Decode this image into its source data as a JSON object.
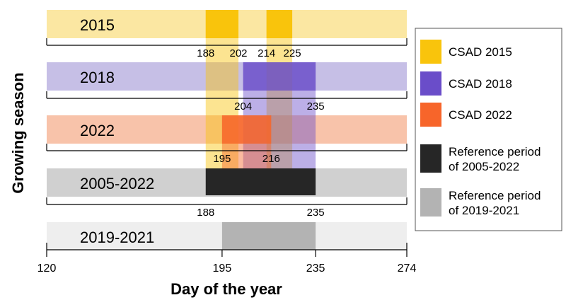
{
  "chart_data": {
    "type": "bar",
    "subtype": "horizontal-range",
    "title": "",
    "xlabel": "Day of the year",
    "ylabel": "Growing season",
    "xlim": [
      120,
      274
    ],
    "xticks": [
      120,
      195,
      235,
      274
    ],
    "rows": [
      {
        "label": "2015",
        "band_color": "#fbe7a2"
      },
      {
        "label": "2018",
        "band_color": "#c6bfe6"
      },
      {
        "label": "2022",
        "band_color": "#f8c3aa"
      },
      {
        "label": "2005-2022",
        "band_color": "#d0d0d0"
      },
      {
        "label": "2019-2021",
        "band_color": "#eeeeee"
      }
    ],
    "series": [
      {
        "name": "CSAD 2015",
        "color": "#f9c40c",
        "intervals": [
          [
            188,
            202
          ],
          [
            214,
            225
          ]
        ],
        "annotations": [
          "188",
          "202",
          "214",
          "225"
        ]
      },
      {
        "name": "CSAD 2018",
        "color": "#6a4dc9",
        "intervals": [
          [
            204,
            235
          ]
        ],
        "annotations": [
          "204",
          "235"
        ]
      },
      {
        "name": "CSAD 2022",
        "color": "#f7652a",
        "intervals": [
          [
            195,
            216
          ]
        ],
        "annotations": [
          "195",
          "216"
        ]
      },
      {
        "name": "Reference period of 2005-2022",
        "legend_lines": [
          "Reference period",
          "of 2005-2022"
        ],
        "color": "#262626",
        "intervals": [
          [
            188,
            235
          ]
        ],
        "annotations": [
          "188",
          "235"
        ]
      },
      {
        "name": "Reference period of 2019-2021",
        "legend_lines": [
          "Reference period",
          "of 2019-2021"
        ],
        "color": "#b3b3b3",
        "intervals": [
          [
            195,
            235
          ]
        ],
        "annotations": []
      }
    ],
    "grid": false,
    "legend_position": "right"
  }
}
